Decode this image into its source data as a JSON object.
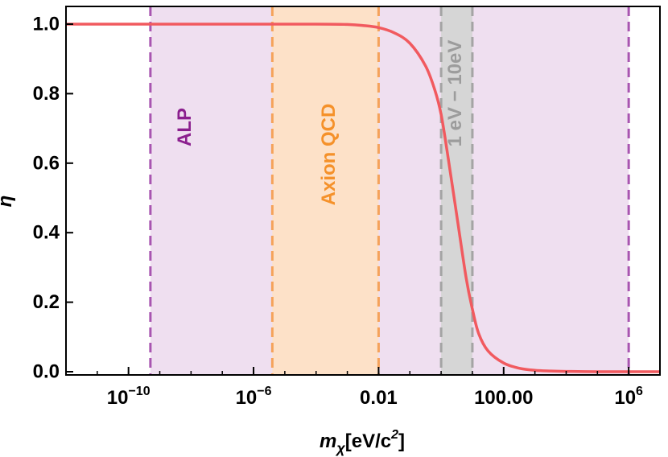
{
  "chart_data": {
    "type": "line",
    "title": "",
    "xlabel": {
      "base": "m",
      "sub": "χ",
      "unit": "[eV/c",
      "sup": "2",
      "close": "]"
    },
    "ylabel": "η̃",
    "x_scale": "log10",
    "xlim_log10": [
      -12,
      7
    ],
    "ylim": [
      0,
      1.05
    ],
    "x_ticks": [
      {
        "exp": -10,
        "mantissa": "10",
        "power": "−10"
      },
      {
        "exp": -6,
        "mantissa": "10",
        "power": "−6"
      },
      {
        "exp": -2,
        "text": "0.01"
      },
      {
        "exp": 2,
        "text": "100.00"
      },
      {
        "exp": 6,
        "mantissa": "10",
        "power": "6"
      }
    ],
    "y_ticks": [
      "0.0",
      "0.2",
      "0.4",
      "0.6",
      "0.8",
      "1.0"
    ],
    "y_tick_values": [
      0,
      0.2,
      0.4,
      0.6,
      0.8,
      1.0
    ],
    "grid": false,
    "series": [
      {
        "color": "#f15a5f",
        "x_log10": [
          -12,
          -8,
          -4,
          -3,
          -2.5,
          -2,
          -1.5,
          -1,
          -0.5,
          -0.2,
          0,
          0.2,
          0.5,
          0.8,
          1,
          1.2,
          1.5,
          2,
          2.5,
          3,
          3.5,
          4,
          5,
          7
        ],
        "y": [
          1.0,
          1.0,
          1.0,
          0.999,
          0.996,
          0.99,
          0.975,
          0.945,
          0.88,
          0.81,
          0.74,
          0.63,
          0.45,
          0.27,
          0.18,
          0.11,
          0.06,
          0.025,
          0.01,
          0.004,
          0.002,
          0.001,
          0.0,
          0.0
        ]
      }
    ],
    "bands": [
      {
        "label": "ALP",
        "x_log10": [
          -9.3,
          6
        ],
        "fill": "#efdff0",
        "line": "#a855b0",
        "text_color": "#8b1f8e"
      },
      {
        "label": "Axion QCD",
        "x_log10": [
          -5.4,
          -2
        ],
        "fill": "#fde1c8",
        "line": "#f5a25a",
        "text_color": "#f5912a"
      },
      {
        "label": "1 eV − 10eV",
        "x_log10": [
          0,
          1
        ],
        "fill": "#d6d6d6",
        "line": "#a4a4a4",
        "text_color": "#9c9c9c"
      }
    ]
  }
}
